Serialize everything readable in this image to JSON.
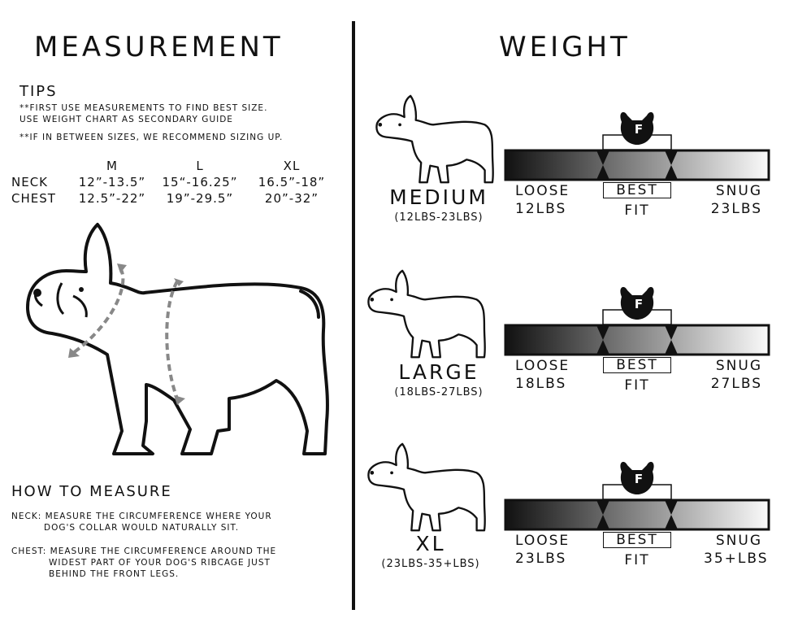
{
  "left": {
    "title": "MEASUREMENT",
    "tips_heading": "TIPS",
    "tip1_line1": "**FIRST USE MEASUREMENTS TO FIND BEST SIZE.",
    "tip1_line2": "USE WEIGHT CHART AS SECONDARY GUIDE",
    "tip2": "**IF IN BETWEEN SIZES, WE RECOMMEND SIZING UP.",
    "table": {
      "columns": [
        "M",
        "L",
        "XL"
      ],
      "rows": [
        {
          "label": "NECK",
          "values": [
            "12”-13.5”",
            "15“-16.25”",
            "16.5”-18”"
          ]
        },
        {
          "label": "CHEST",
          "values": [
            "12.5”-22”",
            "19”-29.5”",
            "20”-32”"
          ]
        }
      ]
    },
    "how_heading": "HOW TO MEASURE",
    "neck_line1": "NECK:  MEASURE THE CIRCUMFERENCE WHERE YOUR",
    "neck_line2": "DOG'S COLLAR WOULD NATURALLY SIT.",
    "chest_line1": "CHEST:  MEASURE THE CIRCUMFERENCE AROUND THE",
    "chest_line2": "WIDEST PART OF YOUR DOG'S RIBCAGE JUST",
    "chest_line3": "BEHIND THE FRONT LEGS."
  },
  "right": {
    "title": "WEIGHT",
    "badge_letter": "F",
    "sizes": [
      {
        "name": "MEDIUM",
        "range": "(12LBS-23LBS)",
        "loose": "LOOSE",
        "loose_w": "12LBS",
        "best": "BEST",
        "fit": "FIT",
        "snug": "SNUG",
        "snug_w": "23LBS"
      },
      {
        "name": "LARGE",
        "range": "(18LBS-27LBS)",
        "loose": "LOOSE",
        "loose_w": "18LBS",
        "best": "BEST",
        "fit": "FIT",
        "snug": "SNUG",
        "snug_w": "27LBS"
      },
      {
        "name": "XL",
        "range": "(23LBS-35+LBS)",
        "loose": "LOOSE",
        "loose_w": "23LBS",
        "best": "BEST",
        "fit": "FIT",
        "snug": "SNUG",
        "snug_w": "35+LBS"
      }
    ]
  }
}
